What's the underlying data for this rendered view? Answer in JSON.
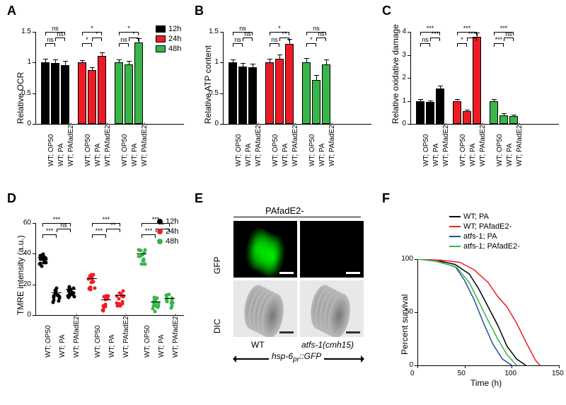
{
  "colors": {
    "t12": "#000000",
    "t24": "#ed1c24",
    "t48": "#39b54a",
    "wt_pa": "#000000",
    "wt_pafade2": "#ed1c24",
    "atfs1_pa": "#1f4e9c",
    "atfs1_pafade2": "#39b54a",
    "axis": "#000000",
    "bg": "#ffffff",
    "grid": "#ffffff"
  },
  "bar_x_labels": [
    "WT; OP50",
    "WT; PA",
    "WT; PAfadE2-",
    "WT; OP50",
    "WT; PA",
    "WT; PAfadE2-",
    "WT; OP50",
    "WT; PA",
    "WT; PAfadE2-"
  ],
  "panelA": {
    "label": "A",
    "ylabel": "Relative OCR",
    "ylim": [
      0,
      1.5
    ],
    "yticks": [
      0,
      0.5,
      1.0,
      1.5
    ],
    "groups": [
      {
        "color": "t12",
        "vals": [
          1.0,
          0.99,
          0.96
        ],
        "err": [
          0.05,
          0.05,
          0.05
        ],
        "sig": [
          "ns",
          "ns",
          "ns"
        ]
      },
      {
        "color": "t24",
        "vals": [
          1.0,
          0.88,
          1.11
        ],
        "err": [
          0.03,
          0.03,
          0.04
        ],
        "sig": [
          "*",
          "*",
          "*"
        ]
      },
      {
        "color": "t48",
        "vals": [
          1.0,
          0.97,
          1.33
        ],
        "err": [
          0.04,
          0.05,
          0.06
        ],
        "sig": [
          "ns",
          "*",
          "*"
        ]
      }
    ],
    "legend": [
      "12h",
      "24h",
      "48h"
    ]
  },
  "panelB": {
    "label": "B",
    "ylabel": "Relative ATP content",
    "ylim": [
      0,
      1.5
    ],
    "yticks": [
      0,
      0.5,
      1.0,
      1.5
    ],
    "groups": [
      {
        "color": "t12",
        "vals": [
          1.0,
          0.93,
          0.92
        ],
        "err": [
          0.04,
          0.05,
          0.05
        ],
        "sig": [
          "ns",
          "ns",
          "ns"
        ]
      },
      {
        "color": "t24",
        "vals": [
          1.0,
          1.06,
          1.3
        ],
        "err": [
          0.05,
          0.06,
          0.07
        ],
        "sig": [
          "ns",
          "**",
          "*"
        ]
      },
      {
        "color": "t48",
        "vals": [
          1.0,
          0.71,
          0.97
        ],
        "err": [
          0.06,
          0.07,
          0.07
        ],
        "sig": [
          "*",
          "ns",
          "ns"
        ]
      }
    ]
  },
  "panelC": {
    "label": "C",
    "ylabel": "Relative oxidative damage",
    "ylim": [
      0,
      4.0
    ],
    "yticks": [
      0,
      1,
      2,
      3,
      4
    ],
    "groups": [
      {
        "color": "t12",
        "vals": [
          1.0,
          0.95,
          1.55
        ],
        "err": [
          0.05,
          0.05,
          0.08
        ],
        "sig": [
          "ns",
          "***",
          "***"
        ]
      },
      {
        "color": "t24",
        "vals": [
          1.0,
          0.55,
          3.8
        ],
        "err": [
          0.06,
          0.05,
          0.15
        ],
        "sig": [
          "*",
          "***",
          "***"
        ]
      },
      {
        "color": "t48",
        "vals": [
          1.0,
          0.38,
          0.34
        ],
        "err": [
          0.05,
          0.04,
          0.04
        ],
        "sig": [
          "***",
          "ns",
          "***"
        ]
      }
    ]
  },
  "panelD": {
    "label": "D",
    "ylabel": "TMRE intensity (a.u.)",
    "ylim": [
      0,
      60
    ],
    "yticks": [
      0,
      20,
      40,
      60
    ],
    "groups": [
      {
        "color": "t12",
        "means": [
          38,
          15,
          17
        ],
        "spread": 5,
        "sig": [
          "***",
          "ns",
          "***"
        ]
      },
      {
        "color": "t24",
        "means": [
          24,
          10,
          13
        ],
        "spread": 5,
        "sig": [
          "***",
          "**",
          "***"
        ]
      },
      {
        "color": "t48",
        "means": [
          40,
          9,
          11
        ],
        "spread": 5,
        "sig": [
          "***",
          "*",
          "***"
        ]
      }
    ],
    "legend": [
      "12h",
      "24h",
      "48h"
    ]
  },
  "panelE": {
    "label": "E",
    "title_top": "PAfadE2-",
    "col_labels": [
      "WT",
      "atfs-1(cmh15)"
    ],
    "row_labels": [
      "GFP",
      "DIC"
    ],
    "bottom_label": "hsp-6_pr::GFP"
  },
  "panelF": {
    "label": "F",
    "ylabel": "Percent survival",
    "xlabel": "Time (h)",
    "xlim": [
      0,
      150
    ],
    "ylim": [
      0,
      100
    ],
    "xticks": [
      0,
      50,
      100,
      150
    ],
    "yticks": [
      0,
      50,
      100
    ],
    "series": [
      {
        "name": "WT; PA",
        "color": "wt_pa",
        "points": [
          [
            0,
            100
          ],
          [
            20,
            99
          ],
          [
            40,
            95
          ],
          [
            55,
            86
          ],
          [
            65,
            72
          ],
          [
            75,
            55
          ],
          [
            85,
            38
          ],
          [
            95,
            18
          ],
          [
            105,
            6
          ],
          [
            115,
            0
          ]
        ]
      },
      {
        "name": "WT; PAfadE2-",
        "color": "wt_pafade2",
        "points": [
          [
            0,
            100
          ],
          [
            25,
            99
          ],
          [
            45,
            97
          ],
          [
            60,
            90
          ],
          [
            75,
            78
          ],
          [
            85,
            65
          ],
          [
            95,
            55
          ],
          [
            105,
            40
          ],
          [
            115,
            22
          ],
          [
            125,
            5
          ],
          [
            130,
            0
          ]
        ]
      },
      {
        "name": "atfs-1; PA",
        "color": "atfs1_pa",
        "points": [
          [
            0,
            100
          ],
          [
            20,
            98
          ],
          [
            40,
            93
          ],
          [
            50,
            80
          ],
          [
            60,
            62
          ],
          [
            70,
            40
          ],
          [
            80,
            20
          ],
          [
            90,
            6
          ],
          [
            100,
            0
          ]
        ]
      },
      {
        "name": "atfs-1; PAfadE2-",
        "color": "atfs1_pafade2",
        "points": [
          [
            0,
            100
          ],
          [
            22,
            98
          ],
          [
            42,
            92
          ],
          [
            55,
            78
          ],
          [
            65,
            60
          ],
          [
            75,
            42
          ],
          [
            85,
            25
          ],
          [
            95,
            10
          ],
          [
            105,
            0
          ]
        ]
      }
    ]
  }
}
